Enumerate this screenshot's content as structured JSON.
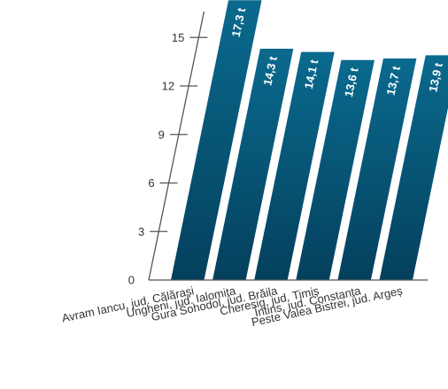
{
  "chart_data": {
    "type": "bar",
    "categories": [
      "Avram Iancu, jud. Călărași",
      "Ungheni, jud. Ialomița",
      "Gura Sohodol, jud. Brăila",
      "Cheresig, jud. Timiș",
      "Întins, jud. Constanța",
      "Peste Valea Bistrei, jud. Argeș"
    ],
    "values": [
      17.3,
      14.3,
      14.1,
      13.6,
      13.7,
      13.9
    ],
    "data_labels": [
      "17,3 t",
      "14,3 t",
      "14,1 t",
      "13,6 t",
      "13,7 t",
      "13,9 t"
    ],
    "y_ticks": [
      "0",
      "3",
      "6",
      "9",
      "12",
      "15"
    ],
    "ylim": [
      0,
      18
    ],
    "title": "",
    "xlabel": "",
    "ylabel": "",
    "grid": false,
    "legend": false,
    "bar_colors": [
      "#0a6a8e",
      "#04405d"
    ],
    "axis_color": "#555555"
  }
}
